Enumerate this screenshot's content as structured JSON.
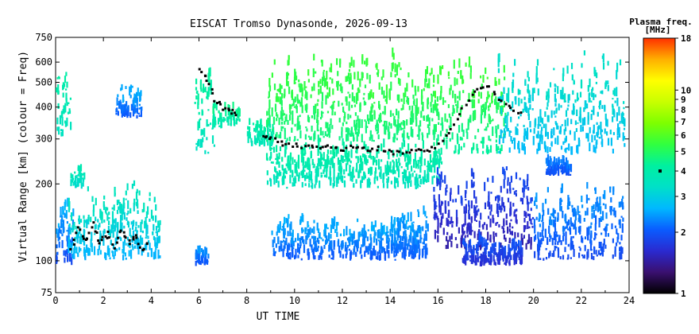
{
  "chart_data": {
    "type": "heatmap",
    "title": "EISCAT Tromso Dynasonde, 2026-09-13",
    "xlabel": "UT TIME",
    "ylabel": "Virtual Range [km] (colour = Freq)",
    "x_ticks": [
      0,
      2,
      4,
      6,
      8,
      10,
      12,
      14,
      16,
      18,
      20,
      22,
      24
    ],
    "xlim": [
      0,
      24
    ],
    "y_ticks": [
      75,
      100,
      200,
      300,
      400,
      500,
      600,
      750
    ],
    "ylim": [
      75,
      750
    ],
    "y_scale": "log",
    "colorbar": {
      "title": "Plasma freq.",
      "units": "[MHz]",
      "ticks": [
        1,
        2,
        3,
        4,
        5,
        6,
        7,
        8,
        9,
        10,
        18
      ],
      "range": [
        1,
        18
      ],
      "scale": "log",
      "marker_at": 4,
      "colors": [
        "#000000",
        "#3a1070",
        "#2a2ad0",
        "#0a5cff",
        "#00b8ff",
        "#00e0c8",
        "#00f0a0",
        "#30ff40",
        "#7dff00",
        "#c8ff00",
        "#ffff00",
        "#ffb000",
        "#ff3000"
      ]
    },
    "regions": [
      {
        "t": [
          0.0,
          0.6
        ],
        "r": [
          300,
          640
        ],
        "f": [
          3.2,
          4.2
        ]
      },
      {
        "t": [
          0.0,
          0.7
        ],
        "r": [
          95,
          180
        ],
        "f": [
          1.6,
          2.6
        ]
      },
      {
        "t": [
          0.5,
          4.3
        ],
        "r": [
          100,
          200
        ],
        "f": [
          2.2,
          3.6
        ]
      },
      {
        "t": [
          0.6,
          1.1
        ],
        "r": [
          190,
          230
        ],
        "f": [
          3.0,
          3.8
        ]
      },
      {
        "t": [
          2.5,
          3.5
        ],
        "r": [
          360,
          480
        ],
        "f": [
          1.8,
          2.6
        ]
      },
      {
        "t": [
          5.8,
          6.6
        ],
        "r": [
          260,
          640
        ],
        "f": [
          3.0,
          4.4
        ]
      },
      {
        "t": [
          6.5,
          7.6
        ],
        "r": [
          330,
          420
        ],
        "f": [
          3.5,
          4.6
        ]
      },
      {
        "t": [
          5.8,
          6.4
        ],
        "r": [
          95,
          110
        ],
        "f": [
          1.8,
          2.4
        ]
      },
      {
        "t": [
          8.0,
          9.0
        ],
        "r": [
          280,
          360
        ],
        "f": [
          3.4,
          4.2
        ]
      },
      {
        "t": [
          8.8,
          15.9
        ],
        "r": [
          290,
          640
        ],
        "f": [
          4.2,
          5.5
        ]
      },
      {
        "t": [
          8.8,
          16.0
        ],
        "r": [
          190,
          300
        ],
        "f": [
          3.2,
          4.2
        ]
      },
      {
        "t": [
          9.0,
          15.0
        ],
        "r": [
          100,
          150
        ],
        "f": [
          1.8,
          2.6
        ]
      },
      {
        "t": [
          14.0,
          15.5
        ],
        "r": [
          100,
          160
        ],
        "f": [
          1.9,
          2.5
        ]
      },
      {
        "t": [
          15.8,
          18.8
        ],
        "r": [
          260,
          650
        ],
        "f": [
          3.8,
          5.6
        ]
      },
      {
        "t": [
          18.5,
          23.7
        ],
        "r": [
          260,
          640
        ],
        "f": [
          2.4,
          3.4
        ]
      },
      {
        "t": [
          15.8,
          20.0
        ],
        "r": [
          110,
          250
        ],
        "f": [
          1.3,
          1.9
        ]
      },
      {
        "t": [
          20.0,
          23.7
        ],
        "r": [
          100,
          200
        ],
        "f": [
          1.7,
          2.4
        ]
      },
      {
        "t": [
          20.5,
          21.5
        ],
        "r": [
          215,
          245
        ],
        "f": [
          1.8,
          2.3
        ]
      },
      {
        "t": [
          17.0,
          19.5
        ],
        "r": [
          95,
          120
        ],
        "f": [
          1.5,
          2.0
        ]
      }
    ],
    "trace_lines": [
      {
        "name": "",
        "points": [
          [
            6.0,
            560
          ],
          [
            6.3,
            520
          ],
          [
            6.6,
            430
          ],
          [
            7.0,
            400
          ],
          [
            7.3,
            390
          ],
          [
            7.6,
            370
          ]
        ]
      },
      {
        "name": "",
        "points": [
          [
            8.6,
            310
          ],
          [
            9.0,
            305
          ],
          [
            9.5,
            290
          ],
          [
            10.0,
            285
          ],
          [
            10.5,
            280
          ],
          [
            11.0,
            283
          ],
          [
            11.5,
            280
          ],
          [
            12.0,
            278
          ],
          [
            12.5,
            283
          ],
          [
            13.0,
            275
          ],
          [
            13.5,
            277
          ],
          [
            14.0,
            270
          ],
          [
            14.5,
            268
          ],
          [
            15.0,
            272
          ],
          [
            15.5,
            268
          ],
          [
            16.0,
            285
          ],
          [
            16.5,
            330
          ],
          [
            17.0,
            400
          ],
          [
            17.5,
            460
          ],
          [
            18.0,
            490
          ],
          [
            18.5,
            440
          ],
          [
            19.0,
            400
          ],
          [
            19.5,
            380
          ]
        ]
      },
      {
        "name": "",
        "points": [
          [
            0.6,
            110
          ],
          [
            0.9,
            135
          ],
          [
            1.2,
            120
          ],
          [
            1.5,
            140
          ],
          [
            1.8,
            118
          ],
          [
            2.1,
            130
          ],
          [
            2.4,
            115
          ],
          [
            2.7,
            135
          ],
          [
            3.0,
            120
          ],
          [
            3.3,
            128
          ],
          [
            3.6,
            112
          ],
          [
            3.9,
            122
          ]
        ]
      }
    ]
  }
}
